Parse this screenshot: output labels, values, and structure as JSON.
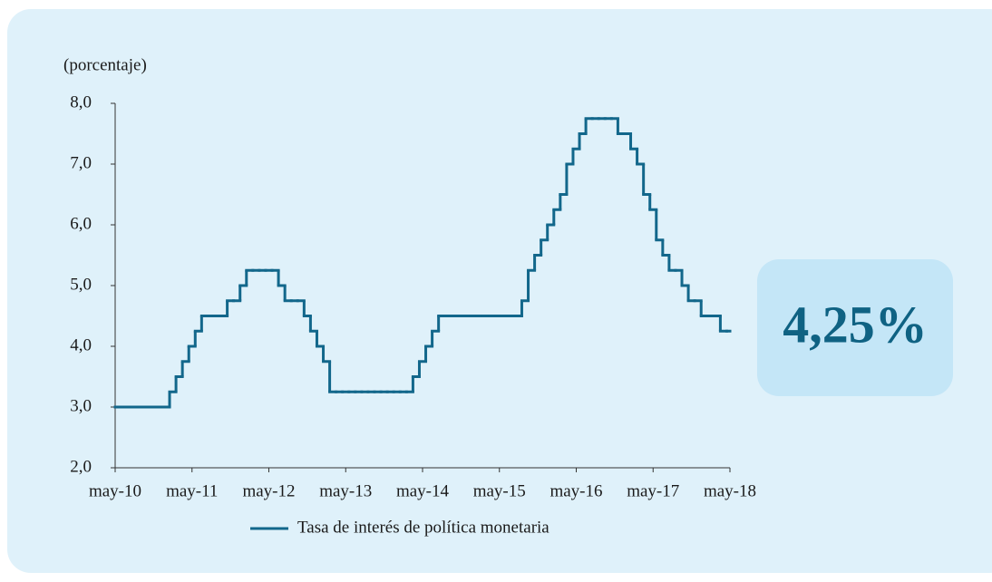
{
  "chart_data": {
    "type": "line",
    "y_axis_label": "(porcentaje)",
    "annotation": "4,25%",
    "categories": [
      "may-10",
      null,
      null,
      null,
      null,
      null,
      null,
      null,
      null,
      null,
      null,
      null,
      "may-11",
      null,
      null,
      null,
      null,
      null,
      null,
      null,
      null,
      null,
      null,
      null,
      "may-12",
      null,
      null,
      null,
      null,
      null,
      null,
      null,
      null,
      null,
      null,
      null,
      "may-13",
      null,
      null,
      null,
      null,
      null,
      null,
      null,
      null,
      null,
      null,
      null,
      "may-14",
      null,
      null,
      null,
      null,
      null,
      null,
      null,
      null,
      null,
      null,
      null,
      "may-15",
      null,
      null,
      null,
      null,
      null,
      null,
      null,
      null,
      null,
      null,
      null,
      "may-16",
      null,
      null,
      null,
      null,
      null,
      null,
      null,
      null,
      null,
      null,
      null,
      "may-17",
      null,
      null,
      null,
      null,
      null,
      null,
      null,
      null,
      null,
      null,
      null,
      "may-18"
    ],
    "series": [
      {
        "name": "Tasa de interés de política monetaria",
        "color": "#12678b",
        "values": [
          3,
          3,
          3,
          3,
          3,
          3,
          3,
          3,
          3,
          3.25,
          3.5,
          3.75,
          4,
          4.25,
          4.5,
          4.5,
          4.5,
          4.5,
          4.75,
          4.75,
          5,
          5.25,
          5.25,
          5.25,
          5.25,
          5.25,
          5,
          4.75,
          4.75,
          4.75,
          4.5,
          4.25,
          4,
          3.75,
          3.25,
          3.25,
          3.25,
          3.25,
          3.25,
          3.25,
          3.25,
          3.25,
          3.25,
          3.25,
          3.25,
          3.25,
          3.25,
          3.5,
          3.75,
          4,
          4.25,
          4.5,
          4.5,
          4.5,
          4.5,
          4.5,
          4.5,
          4.5,
          4.5,
          4.5,
          4.5,
          4.5,
          4.5,
          4.5,
          4.75,
          5.25,
          5.5,
          5.75,
          6,
          6.25,
          6.5,
          7,
          7.25,
          7.5,
          7.75,
          7.75,
          7.75,
          7.75,
          7.75,
          7.5,
          7.5,
          7.25,
          7,
          6.5,
          6.25,
          5.75,
          5.5,
          5.25,
          5.25,
          5,
          4.75,
          4.75,
          4.5,
          4.5,
          4.5,
          4.25,
          4.25
        ]
      }
    ],
    "ylim": [
      2,
      8
    ],
    "yticks": [
      {
        "value": 2,
        "label": "2,0"
      },
      {
        "value": 3,
        "label": "3,0"
      },
      {
        "value": 4,
        "label": "4,0"
      },
      {
        "value": 5,
        "label": "5,0"
      },
      {
        "value": 6,
        "label": "6,0"
      },
      {
        "value": 7,
        "label": "7,0"
      },
      {
        "value": 8,
        "label": "8,0"
      }
    ],
    "legend": "bottom"
  }
}
